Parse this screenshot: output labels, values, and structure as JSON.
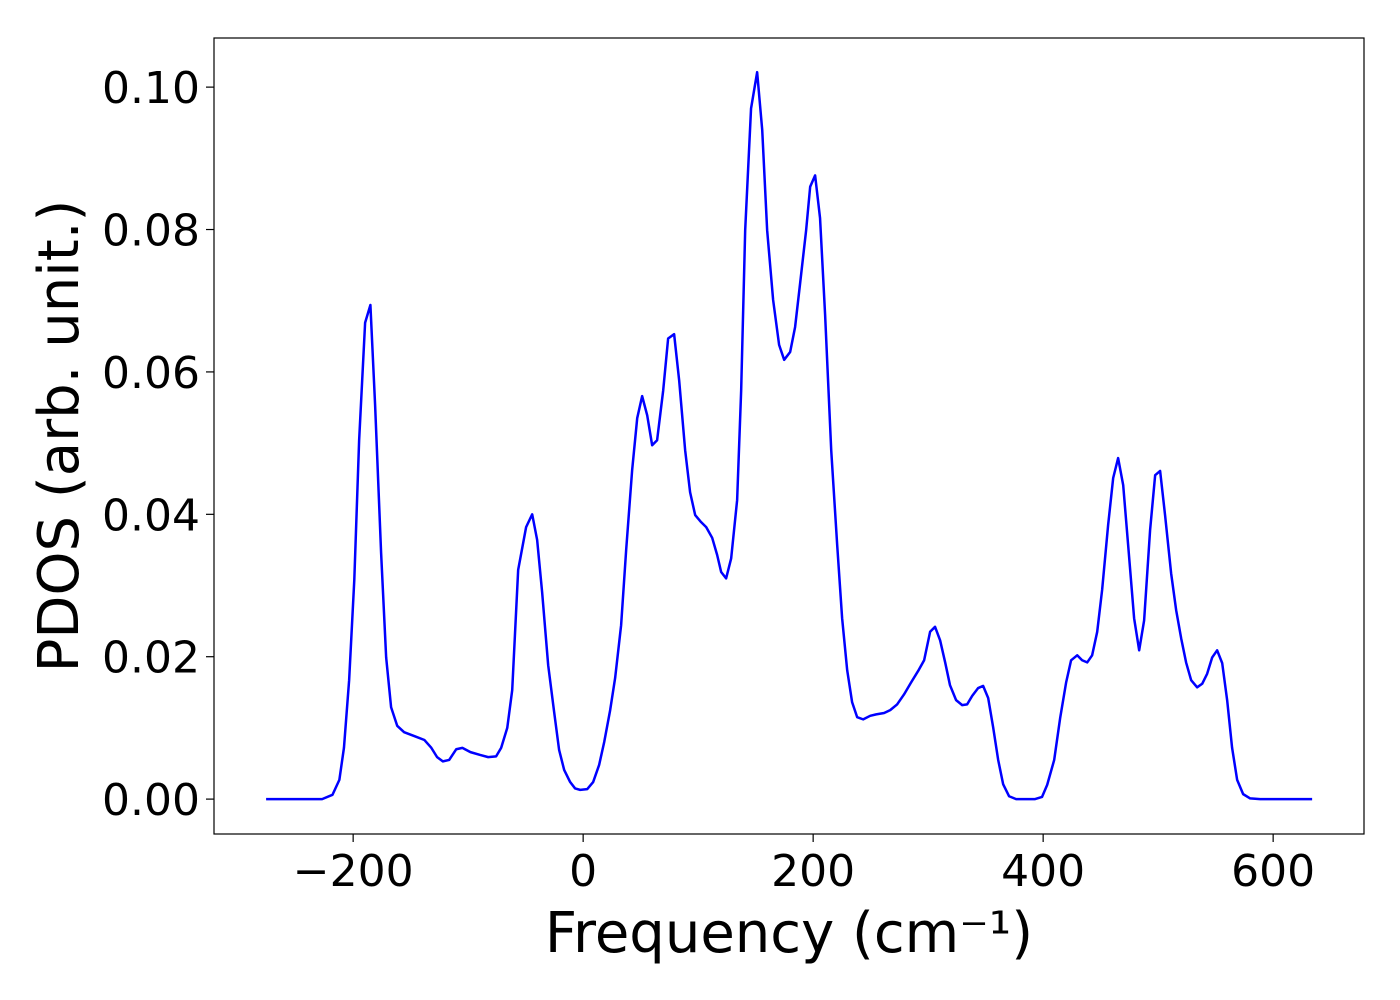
{
  "chart_data": {
    "type": "line",
    "xlabel": "Frequency (cm⁻¹)",
    "ylabel": "PDOS (arb. unit.)",
    "xlim": [
      -321,
      679
    ],
    "ylim": [
      -0.0049,
      0.1069
    ],
    "xticks": [
      {
        "value": -200,
        "label": "−200"
      },
      0,
      200,
      400,
      600
    ],
    "yticks": [
      {
        "value": 0,
        "label": "0.00"
      },
      0.02,
      0.04,
      0.06,
      0.08,
      {
        "value": 0.1,
        "label": "0.10"
      }
    ],
    "x": [
      -275.7,
      -227,
      -218,
      -212,
      -208,
      -203.5,
      -199,
      -194.8,
      -189.6,
      -185,
      -180.9,
      -175.7,
      -171.3,
      -167,
      -161.7,
      -155.7,
      -146,
      -138,
      -132,
      -127,
      -122,
      -116.5,
      -110.4,
      -105,
      -98,
      -89.6,
      -82.6,
      -75.7,
      -71.3,
      -66,
      -61.7,
      -56.5,
      -49.6,
      -44.3,
      -40,
      -35.7,
      -30.4,
      -25.2,
      -20.9,
      -16.5,
      -11.3,
      -7,
      -2.6,
      3.5,
      8.7,
      13.9,
      18.3,
      23.5,
      27.8,
      33,
      37.4,
      42.6,
      47,
      51.3,
      55.7,
      60,
      64.3,
      69.6,
      73.9,
      79.1,
      83.5,
      88.7,
      93,
      97.4,
      102.6,
      107,
      112.2,
      116.5,
      120,
      124.3,
      128.7,
      133.9,
      137.4,
      140.9,
      146,
      151.3,
      155.7,
      160,
      165.2,
      170.4,
      174.8,
      180,
      184.3,
      188.7,
      193.9,
      197.4,
      201.7,
      206,
      210.4,
      215.7,
      220.9,
      225.2,
      229.6,
      233.9,
      238.3,
      243.5,
      249.6,
      254.8,
      261.7,
      267,
      273,
      279,
      285.2,
      291.3,
      296.5,
      301.7,
      306,
      310.4,
      314.8,
      319,
      324.3,
      329.6,
      333.9,
      338.3,
      343.5,
      347.8,
      352.2,
      356.5,
      360.9,
      365.2,
      370.4,
      376.5,
      393,
      399,
      403.5,
      409.6,
      414.8,
      420,
      424.3,
      429.6,
      433.9,
      438.3,
      442.6,
      447,
      451.3,
      456.5,
      460.9,
      465.2,
      469.6,
      473.9,
      479.1,
      483.5,
      487.8,
      493,
      497.4,
      501.7,
      506,
      511.3,
      515.7,
      520,
      524.3,
      528.7,
      533.9,
      538.3,
      542.6,
      547,
      551.3,
      555.7,
      560,
      564.3,
      568.7,
      573.9,
      580,
      588.7,
      633.9
    ],
    "series": [
      {
        "name": "PDOS",
        "color": "#0000ff",
        "values": [
          0,
          0,
          0.0006,
          0.0027,
          0.0072,
          0.0167,
          0.0308,
          0.0504,
          0.0669,
          0.0694,
          0.0553,
          0.0346,
          0.0199,
          0.0129,
          0.0103,
          0.0094,
          0.0088,
          0.0083,
          0.0072,
          0.0059,
          0.0053,
          0.0055,
          0.007,
          0.0072,
          0.0066,
          0.0062,
          0.0059,
          0.006,
          0.0072,
          0.01,
          0.0153,
          0.0322,
          0.0382,
          0.04,
          0.0364,
          0.0291,
          0.0188,
          0.0122,
          0.0069,
          0.0041,
          0.0024,
          0.0015,
          0.0013,
          0.0014,
          0.0024,
          0.0048,
          0.008,
          0.0125,
          0.017,
          0.0244,
          0.035,
          0.0462,
          0.0535,
          0.0566,
          0.0539,
          0.0497,
          0.0504,
          0.0574,
          0.0647,
          0.0653,
          0.0588,
          0.049,
          0.0431,
          0.0399,
          0.0389,
          0.0382,
          0.0367,
          0.0343,
          0.0319,
          0.031,
          0.0338,
          0.042,
          0.0574,
          0.0799,
          0.097,
          0.1021,
          0.094,
          0.0799,
          0.0701,
          0.0638,
          0.0617,
          0.0628,
          0.0663,
          0.0725,
          0.0799,
          0.086,
          0.0876,
          0.0816,
          0.068,
          0.049,
          0.0357,
          0.0254,
          0.0181,
          0.0136,
          0.0115,
          0.0112,
          0.0117,
          0.0119,
          0.0121,
          0.0125,
          0.0133,
          0.0147,
          0.0164,
          0.018,
          0.0195,
          0.0235,
          0.0242,
          0.0223,
          0.0192,
          0.016,
          0.0139,
          0.0132,
          0.0133,
          0.0145,
          0.0156,
          0.0159,
          0.0142,
          0.0101,
          0.0055,
          0.0021,
          0.0004,
          0,
          0,
          0.0003,
          0.002,
          0.0055,
          0.0114,
          0.0164,
          0.0195,
          0.0202,
          0.0195,
          0.0192,
          0.0202,
          0.0235,
          0.0294,
          0.0385,
          0.0451,
          0.0479,
          0.0441,
          0.0357,
          0.0254,
          0.0209,
          0.0251,
          0.0378,
          0.0455,
          0.0461,
          0.0399,
          0.0317,
          0.0265,
          0.0226,
          0.0192,
          0.0167,
          0.0157,
          0.0162,
          0.0176,
          0.0199,
          0.0209,
          0.0191,
          0.0139,
          0.0072,
          0.0027,
          0.0007,
          0.0001,
          0,
          0
        ]
      }
    ]
  }
}
